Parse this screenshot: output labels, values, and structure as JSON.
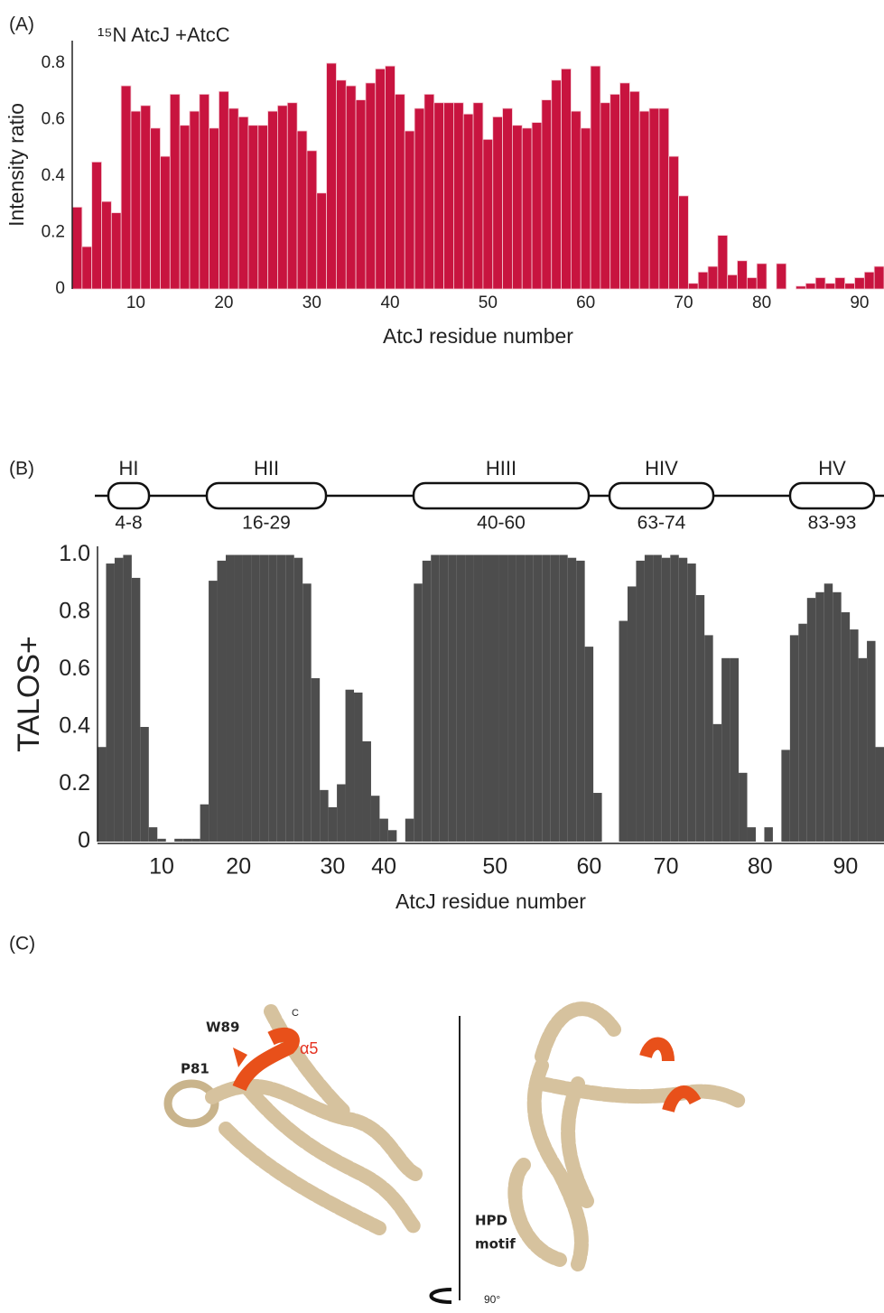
{
  "panels": [
    "(A)",
    "(B)",
    "(C)"
  ],
  "chart_data": [
    {
      "type": "bar",
      "title": "¹⁵N AtcJ +AtcC",
      "x_label": "AtcJ residue number",
      "y_label": "Intensity ratio",
      "color": "#c8143f",
      "categories": [
        null,
        null,
        null,
        null,
        null,
        null,
        "10",
        null,
        null,
        null,
        null,
        null,
        null,
        null,
        null,
        "20",
        null,
        null,
        null,
        null,
        null,
        null,
        null,
        null,
        "30",
        null,
        null,
        null,
        null,
        null,
        null,
        null,
        "40",
        null,
        null,
        null,
        null,
        null,
        null,
        null,
        null,
        null,
        "50",
        null,
        null,
        null,
        null,
        null,
        null,
        null,
        null,
        null,
        "60",
        null,
        null,
        null,
        null,
        null,
        null,
        null,
        null,
        null,
        "70",
        null,
        null,
        null,
        null,
        null,
        null,
        null,
        "80",
        null,
        null,
        null,
        null,
        null,
        null,
        null,
        null,
        null,
        "90",
        null,
        null
      ],
      "values": [
        0.29,
        0.15,
        0.45,
        0.31,
        0.27,
        0.72,
        0.63,
        0.65,
        0.57,
        0.47,
        0.69,
        0.58,
        0.63,
        0.69,
        0.57,
        0.7,
        0.64,
        0.61,
        0.58,
        0.58,
        0.63,
        0.65,
        0.66,
        0.56,
        0.49,
        0.34,
        0.8,
        0.74,
        0.72,
        0.67,
        0.73,
        0.78,
        0.79,
        0.69,
        0.56,
        0.64,
        0.69,
        0.66,
        0.66,
        0.66,
        0.62,
        0.66,
        0.53,
        0.61,
        0.64,
        0.58,
        0.57,
        0.59,
        0.67,
        0.74,
        0.78,
        0.63,
        0.57,
        0.79,
        0.66,
        0.69,
        0.73,
        0.7,
        0.63,
        0.64,
        0.64,
        0.47,
        0.33,
        0.02,
        0.06,
        0.08,
        0.19,
        0.05,
        0.1,
        0.04,
        0.09,
        0,
        0.09,
        0,
        0.01,
        0.02,
        0.04,
        0.02,
        0.04,
        0.02,
        0.04,
        0.06,
        0.08
      ],
      "ylim": [
        0,
        0.88
      ],
      "yticks": [
        0,
        0.2,
        0.4,
        0.6,
        0.8
      ]
    },
    {
      "type": "bar",
      "x_label": "AtcJ residue number",
      "y_label": "TALOS+",
      "color": "#4d4d4d",
      "helices": [
        {
          "name": "HI",
          "range": "4-8"
        },
        {
          "name": "HII",
          "range": "16-29"
        },
        {
          "name": "HIII",
          "range": "40-60"
        },
        {
          "name": "HIV",
          "range": "63-74"
        },
        {
          "name": "HV",
          "range": "83-93"
        }
      ],
      "categories": [
        null,
        null,
        null,
        null,
        null,
        null,
        null,
        "10",
        null,
        null,
        null,
        null,
        null,
        null,
        null,
        null,
        "20",
        null,
        null,
        null,
        null,
        null,
        null,
        null,
        null,
        null,
        null,
        "30",
        null,
        null,
        null,
        null,
        null,
        "40",
        null,
        null,
        null,
        null,
        null,
        null,
        null,
        null,
        null,
        null,
        null,
        null,
        "50",
        null,
        null,
        null,
        null,
        null,
        null,
        null,
        null,
        null,
        null,
        "60",
        null,
        null,
        null,
        null,
        null,
        null,
        null,
        null,
        "70",
        null,
        null,
        null,
        null,
        null,
        null,
        null,
        null,
        null,
        null,
        "80",
        null,
        null,
        null,
        null,
        null,
        null,
        null,
        null,
        null,
        "90",
        null,
        null,
        null,
        null
      ],
      "values": [
        0.33,
        0.97,
        0.99,
        1,
        0.92,
        0.4,
        0.05,
        0.01,
        0,
        0.01,
        0.01,
        0.01,
        0.13,
        0.91,
        0.98,
        1,
        1,
        1,
        1,
        1,
        1,
        1,
        1,
        0.99,
        0.9,
        0.57,
        0.18,
        0.12,
        0.2,
        0.53,
        0.52,
        0.35,
        0.16,
        0.08,
        0.04,
        0,
        0.08,
        0.9,
        0.98,
        1,
        1,
        1,
        1,
        1,
        1,
        1,
        1,
        1,
        1,
        1,
        1,
        1,
        1,
        1,
        1,
        0.99,
        0.98,
        0.68,
        0.17,
        0,
        0,
        0.77,
        0.89,
        0.98,
        1,
        1,
        0.99,
        1,
        0.99,
        0.97,
        0.86,
        0.72,
        0.41,
        0.64,
        0.64,
        0.24,
        0.05,
        0,
        0.05,
        0,
        0.32,
        0.72,
        0.76,
        0.85,
        0.87,
        0.9,
        0.87,
        0.8,
        0.74,
        0.64,
        0.7,
        0.33
      ],
      "ylim": [
        0,
        1.03
      ],
      "yticks": [
        0,
        0.2,
        0.4,
        0.6,
        0.8,
        {
          "value": 1,
          "label": "1.0"
        }
      ]
    }
  ],
  "structure": {
    "labels": [
      "W89",
      "P81",
      "α5",
      "C"
    ],
    "motif": [
      "HPD",
      "motif"
    ],
    "rotation": "90°"
  }
}
